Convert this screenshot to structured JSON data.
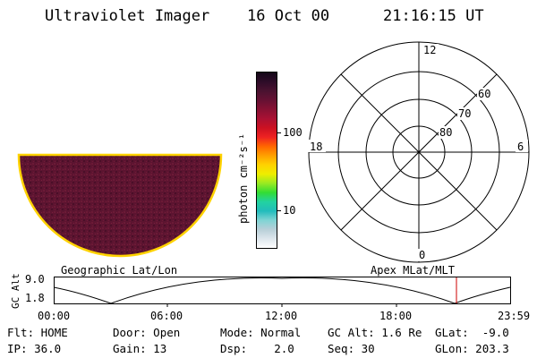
{
  "header": {
    "title": "Ultraviolet Imager",
    "date": "16 Oct 00",
    "time": "21:16:15 UT"
  },
  "colorbar": {
    "unit_label": "photon cm⁻²s⁻¹",
    "ticks": [
      "100",
      "10"
    ],
    "colors": [
      "#ffffff",
      "#dde6ec",
      "#b8cfd8",
      "#7fd4d4",
      "#22bcbc",
      "#22d2a0",
      "#33dd33",
      "#99ea22",
      "#eeee00",
      "#ffd200",
      "#ffa000",
      "#ff6600",
      "#ee2222",
      "#cc1122",
      "#aa1133",
      "#881133",
      "#661133",
      "#4a1230",
      "#2e0c28",
      "#140818"
    ]
  },
  "polar": {
    "mlt_labels": {
      "top": "12",
      "left": "18",
      "right": "6",
      "bottom": "0"
    },
    "lat_labels": [
      "60",
      "70",
      "80"
    ]
  },
  "geo_image": {
    "fill_color": "#5c1430",
    "rim_color": "#ffd200"
  },
  "timeline": {
    "left_label": "Geographic Lat/Lon",
    "right_label": "Apex MLat/MLT",
    "y_axis_label": "GC Alt",
    "y_ticks": [
      "9.0",
      "1.8"
    ],
    "x_ticks": [
      "00:00",
      "06:00",
      "12:00",
      "18:00",
      "23:59"
    ],
    "marker_color": "#cc0000"
  },
  "info": {
    "row1": [
      {
        "label": "Flt:",
        "value": "HOME"
      },
      {
        "label": "Door:",
        "value": "Open"
      },
      {
        "label": "Mode:",
        "value": "Normal"
      },
      {
        "label": "GC Alt:",
        "value": "1.6 Re"
      },
      {
        "label": "GLat:",
        "value": "-9.0"
      }
    ],
    "row2": [
      {
        "label": "IP:",
        "value": "36.0"
      },
      {
        "label": "Gain:",
        "value": "13"
      },
      {
        "label": "Dsp:",
        "value": "2.0"
      },
      {
        "label": "Seq:",
        "value": "30"
      },
      {
        "label": "GLon:",
        "value": "203.3"
      }
    ]
  }
}
